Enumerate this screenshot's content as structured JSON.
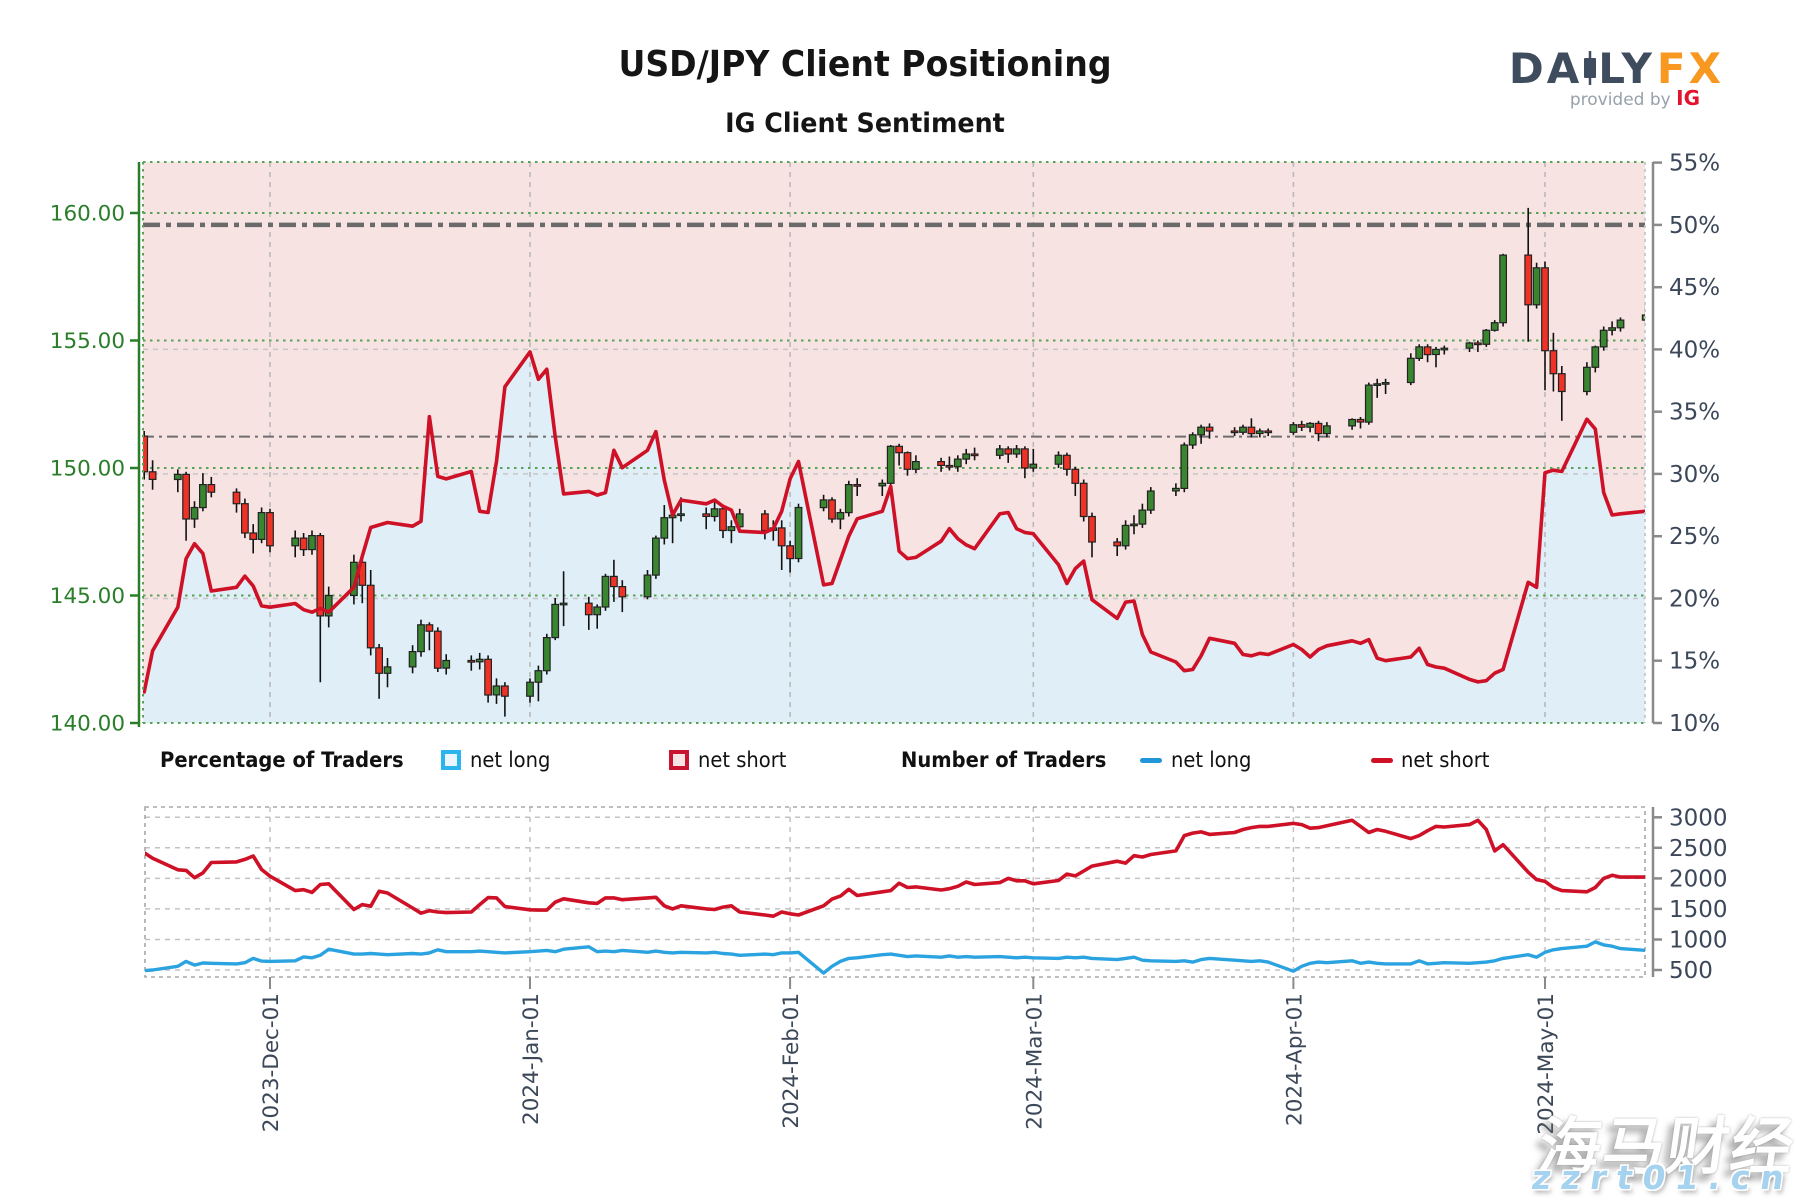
{
  "header": {
    "title": "USD/JPY Client Positioning",
    "subtitle": "IG Client Sentiment",
    "logo": {
      "part1": "DA",
      "part2": "LY",
      "part3": "FX",
      "provided": "provided by",
      "ig": "IG"
    }
  },
  "legend": {
    "pct_title": "Percentage of Traders",
    "pct_long": "net long",
    "pct_short": "net short",
    "num_title": "Number of Traders",
    "num_long": "net long",
    "num_short": "net short"
  },
  "watermark": {
    "line1": "海马财经",
    "line2": "zzrt01.cn"
  },
  "colors": {
    "axis_green": "#2a7e2a",
    "grid_green": "#57a257",
    "grid_gray": "#bbbbbb",
    "ref_line": "#686868",
    "pink_bg": "#f8e3e3",
    "blue_bg": "#e0eef8",
    "sentiment_red": "#ce1126",
    "candle_up": "#3a8530",
    "candle_down": "#ee3326",
    "count_blue": "#2ba3e0",
    "label_slate": "#3c4859",
    "logo_slate": "#3f4c5d",
    "logo_orange": "#f89820",
    "logo_ig_red": "#e4132d"
  },
  "chart_data": {
    "type": "candlestick+line",
    "title": "USD/JPY Client Positioning",
    "subtitle": "IG Client Sentiment",
    "x_months": [
      {
        "label": "2023-Dec-01",
        "d": 15
      },
      {
        "label": "2024-Jan-01",
        "d": 46
      },
      {
        "label": "2024-Feb-01",
        "d": 77
      },
      {
        "label": "2024-Mar-01",
        "d": 106
      },
      {
        "label": "2024-Apr-01",
        "d": 137
      },
      {
        "label": "2024-May-01",
        "d": 167
      }
    ],
    "price_axis": {
      "tick_labels": [
        "160.00",
        "155.00",
        "150.00",
        "145.00",
        "140.00"
      ],
      "tick_values": [
        160,
        155,
        150,
        145,
        140
      ],
      "range": [
        140,
        162.0
      ]
    },
    "pct_axis": {
      "tick_labels": [
        "55%",
        "50%",
        "45%",
        "40%",
        "35%",
        "30%",
        "25%",
        "20%",
        "15%",
        "10%"
      ],
      "tick_values": [
        55,
        50,
        45,
        40,
        35,
        30,
        25,
        20,
        15,
        10
      ],
      "range": [
        10,
        55.05
      ],
      "ref_heavy": 50,
      "ref_mid": 33
    },
    "count_axis": {
      "tick_labels": [
        "3000",
        "2500",
        "2000",
        "1500",
        "1000",
        "500"
      ],
      "tick_values": [
        3000,
        2500,
        2000,
        1500,
        1000,
        500
      ]
    },
    "days": [
      0,
      1,
      4,
      5,
      6,
      7,
      8,
      11,
      12,
      13,
      14,
      15,
      18,
      19,
      20,
      21,
      22,
      25,
      26,
      27,
      28,
      29,
      32,
      33,
      34,
      35,
      36,
      39,
      40,
      41,
      42,
      43,
      46,
      47,
      48,
      49,
      50,
      53,
      54,
      55,
      56,
      57,
      60,
      61,
      62,
      63,
      64,
      67,
      68,
      69,
      70,
      71,
      74,
      75,
      76,
      77,
      78,
      81,
      82,
      83,
      84,
      85,
      88,
      89,
      90,
      91,
      92,
      95,
      96,
      97,
      98,
      99,
      102,
      103,
      104,
      105,
      106,
      109,
      110,
      111,
      112,
      113,
      116,
      117,
      118,
      119,
      120,
      123,
      124,
      125,
      126,
      127,
      130,
      131,
      132,
      133,
      134,
      137,
      138,
      139,
      140,
      141,
      144,
      145,
      146,
      147,
      148,
      151,
      152,
      153,
      154,
      155,
      158,
      159,
      160,
      161,
      162,
      165,
      166,
      167,
      168,
      169,
      172,
      173,
      174,
      175,
      176,
      179
    ],
    "candles_ohlc": [
      [
        151.25,
        151.45,
        149.55,
        149.85
      ],
      [
        149.85,
        150.3,
        149.15,
        149.55
      ],
      [
        149.55,
        149.95,
        149.05,
        149.75
      ],
      [
        149.75,
        149.85,
        147.15,
        148.0
      ],
      [
        148.0,
        148.7,
        147.65,
        148.45
      ],
      [
        148.45,
        149.8,
        148.3,
        149.35
      ],
      [
        149.35,
        149.65,
        148.85,
        149.05
      ],
      [
        149.05,
        149.2,
        148.25,
        148.6
      ],
      [
        148.6,
        148.8,
        147.25,
        147.45
      ],
      [
        147.45,
        147.8,
        146.65,
        147.2
      ],
      [
        147.2,
        148.45,
        147.05,
        148.25
      ],
      [
        148.25,
        148.4,
        146.7,
        146.95
      ],
      [
        146.95,
        147.55,
        146.5,
        147.25
      ],
      [
        147.25,
        147.45,
        146.55,
        146.8
      ],
      [
        146.8,
        147.55,
        146.6,
        147.35
      ],
      [
        147.35,
        147.45,
        141.6,
        144.2
      ],
      [
        144.2,
        145.35,
        143.75,
        145.0
      ],
      [
        145.0,
        146.6,
        144.65,
        146.3
      ],
      [
        146.3,
        146.5,
        144.7,
        145.4
      ],
      [
        145.4,
        146.0,
        142.65,
        142.95
      ],
      [
        142.95,
        143.1,
        140.95,
        141.95
      ],
      [
        141.95,
        142.55,
        141.4,
        142.2
      ],
      [
        142.2,
        143.05,
        141.95,
        142.8
      ],
      [
        142.8,
        144.05,
        142.6,
        143.85
      ],
      [
        143.85,
        143.95,
        142.85,
        143.6
      ],
      [
        143.6,
        143.75,
        142.0,
        142.15
      ],
      [
        142.15,
        142.7,
        141.9,
        142.45
      ],
      [
        142.45,
        142.65,
        142.05,
        142.4
      ],
      [
        142.4,
        142.75,
        142.1,
        142.5
      ],
      [
        142.5,
        142.65,
        140.8,
        141.1
      ],
      [
        141.1,
        141.75,
        140.75,
        141.45
      ],
      [
        141.45,
        141.6,
        140.25,
        141.05
      ],
      [
        141.05,
        141.75,
        140.8,
        141.6
      ],
      [
        141.6,
        142.25,
        140.85,
        142.05
      ],
      [
        142.05,
        143.5,
        141.9,
        143.35
      ],
      [
        143.35,
        144.9,
        143.25,
        144.65
      ],
      [
        144.65,
        145.95,
        143.8,
        144.7
      ],
      [
        144.7,
        144.95,
        143.65,
        144.25
      ],
      [
        144.25,
        144.65,
        143.7,
        144.55
      ],
      [
        144.55,
        145.85,
        144.4,
        145.75
      ],
      [
        145.75,
        146.4,
        144.75,
        145.35
      ],
      [
        145.35,
        145.6,
        144.35,
        144.95
      ],
      [
        144.95,
        146.0,
        144.85,
        145.8
      ],
      [
        145.8,
        147.35,
        145.65,
        147.25
      ],
      [
        147.25,
        148.55,
        147.0,
        148.05
      ],
      [
        148.05,
        148.35,
        147.05,
        148.15
      ],
      [
        148.15,
        148.85,
        147.9,
        148.2
      ],
      [
        148.2,
        148.45,
        147.6,
        148.1
      ],
      [
        148.1,
        148.75,
        147.9,
        148.4
      ],
      [
        148.4,
        148.5,
        147.25,
        147.55
      ],
      [
        147.55,
        147.95,
        147.05,
        147.7
      ],
      [
        147.7,
        148.4,
        147.45,
        148.2
      ],
      [
        148.2,
        148.35,
        147.2,
        147.55
      ],
      [
        147.55,
        147.95,
        147.15,
        147.65
      ],
      [
        147.65,
        147.95,
        146.0,
        146.95
      ],
      [
        146.95,
        147.15,
        145.9,
        146.45
      ],
      [
        146.45,
        148.6,
        146.3,
        148.45
      ],
      [
        148.45,
        148.95,
        148.3,
        148.75
      ],
      [
        148.75,
        148.85,
        147.85,
        148.0
      ],
      [
        148.0,
        148.4,
        147.6,
        148.25
      ],
      [
        148.25,
        149.5,
        148.1,
        149.35
      ],
      [
        149.35,
        149.6,
        148.9,
        149.3
      ],
      [
        149.3,
        149.55,
        148.9,
        149.4
      ],
      [
        149.4,
        150.9,
        149.3,
        150.85
      ],
      [
        150.85,
        150.95,
        150.1,
        150.6
      ],
      [
        150.6,
        150.65,
        149.7,
        149.95
      ],
      [
        149.95,
        150.5,
        149.8,
        150.25
      ],
      [
        150.25,
        150.4,
        149.85,
        150.1
      ],
      [
        150.1,
        150.45,
        149.9,
        150.05
      ],
      [
        150.05,
        150.5,
        149.85,
        150.35
      ],
      [
        150.35,
        150.75,
        150.15,
        150.55
      ],
      [
        150.55,
        150.8,
        150.3,
        150.5
      ],
      [
        150.5,
        150.9,
        150.35,
        150.75
      ],
      [
        150.75,
        150.85,
        150.2,
        150.55
      ],
      [
        150.55,
        150.9,
        150.4,
        150.75
      ],
      [
        150.75,
        150.85,
        149.6,
        150.0
      ],
      [
        150.0,
        150.75,
        149.85,
        150.15
      ],
      [
        150.15,
        150.65,
        150.0,
        150.5
      ],
      [
        150.5,
        150.6,
        149.7,
        149.95
      ],
      [
        149.95,
        150.05,
        148.9,
        149.4
      ],
      [
        149.4,
        149.55,
        147.9,
        148.1
      ],
      [
        148.1,
        148.25,
        146.5,
        147.1
      ],
      [
        147.1,
        147.25,
        146.55,
        146.95
      ],
      [
        146.95,
        147.95,
        146.8,
        147.75
      ],
      [
        147.75,
        148.15,
        147.4,
        147.8
      ],
      [
        147.8,
        148.6,
        147.65,
        148.35
      ],
      [
        148.35,
        149.25,
        148.2,
        149.1
      ],
      [
        149.1,
        149.4,
        148.9,
        149.2
      ],
      [
        149.2,
        151.0,
        149.05,
        150.9
      ],
      [
        150.9,
        151.4,
        150.75,
        151.3
      ],
      [
        151.3,
        151.7,
        150.95,
        151.6
      ],
      [
        151.6,
        151.75,
        151.15,
        151.45
      ],
      [
        151.45,
        151.6,
        151.25,
        151.4
      ],
      [
        151.4,
        151.7,
        151.3,
        151.6
      ],
      [
        151.6,
        151.95,
        151.2,
        151.35
      ],
      [
        151.35,
        151.55,
        151.2,
        151.45
      ],
      [
        151.45,
        151.55,
        151.25,
        151.4
      ],
      [
        151.4,
        151.8,
        151.3,
        151.7
      ],
      [
        151.7,
        151.85,
        151.45,
        151.6
      ],
      [
        151.6,
        151.8,
        151.4,
        151.75
      ],
      [
        151.75,
        151.85,
        151.05,
        151.35
      ],
      [
        151.35,
        151.8,
        151.2,
        151.65
      ],
      [
        151.65,
        151.95,
        151.5,
        151.9
      ],
      [
        151.9,
        152.0,
        151.55,
        151.8
      ],
      [
        151.8,
        153.35,
        151.7,
        153.25
      ],
      [
        153.25,
        153.5,
        152.75,
        153.3
      ],
      [
        153.3,
        153.5,
        152.9,
        153.35
      ],
      [
        153.35,
        154.5,
        153.25,
        154.3
      ],
      [
        154.3,
        154.85,
        154.2,
        154.75
      ],
      [
        154.75,
        154.85,
        154.15,
        154.45
      ],
      [
        154.45,
        154.75,
        153.95,
        154.65
      ],
      [
        154.65,
        154.8,
        154.45,
        154.7
      ],
      [
        154.7,
        154.95,
        154.55,
        154.9
      ],
      [
        154.9,
        155.0,
        154.55,
        154.85
      ],
      [
        154.85,
        155.45,
        154.75,
        155.4
      ],
      [
        155.4,
        155.8,
        155.35,
        155.7
      ],
      [
        155.7,
        158.4,
        155.55,
        158.35
      ],
      [
        158.35,
        160.2,
        154.95,
        156.4
      ],
      [
        156.4,
        158.05,
        156.25,
        157.85
      ],
      [
        157.85,
        158.1,
        153.05,
        154.6
      ],
      [
        154.6,
        155.3,
        153.0,
        153.7
      ],
      [
        153.7,
        154.0,
        151.85,
        153.0
      ],
      [
        153.0,
        154.15,
        152.85,
        153.95
      ],
      [
        153.95,
        154.8,
        153.75,
        154.75
      ],
      [
        154.75,
        155.55,
        154.6,
        155.4
      ],
      [
        155.4,
        155.75,
        155.2,
        155.5
      ],
      [
        155.5,
        155.9,
        155.35,
        155.8
      ],
      [
        155.8,
        156.4,
        155.65,
        156.0
      ]
    ],
    "pct_net_short": [
      12.5,
      15.8,
      19.3,
      23.2,
      24.4,
      23.6,
      20.6,
      20.9,
      21.8,
      21.0,
      19.4,
      19.3,
      19.6,
      19.1,
      18.9,
      19.2,
      18.9,
      20.9,
      23.4,
      25.7,
      25.9,
      26.1,
      25.8,
      26.2,
      34.6,
      29.8,
      29.6,
      30.2,
      27.0,
      26.9,
      31.0,
      37.0,
      39.8,
      37.6,
      38.4,
      33.0,
      28.4,
      28.6,
      28.3,
      28.5,
      31.9,
      30.5,
      31.9,
      33.4,
      29.5,
      26.7,
      27.9,
      27.6,
      27.9,
      27.4,
      27.1,
      25.4,
      25.3,
      25.6,
      27.0,
      29.6,
      31.0,
      21.1,
      21.2,
      23.1,
      25.0,
      26.4,
      27.0,
      29.0,
      23.8,
      23.2,
      23.3,
      24.6,
      25.6,
      24.8,
      24.3,
      24.0,
      26.8,
      26.9,
      25.6,
      25.3,
      25.2,
      22.7,
      21.2,
      22.4,
      23.0,
      19.9,
      18.4,
      19.7,
      19.8,
      17.1,
      15.7,
      14.9,
      14.2,
      14.3,
      15.4,
      16.8,
      16.4,
      15.5,
      15.4,
      15.6,
      15.5,
      16.3,
      15.9,
      15.3,
      15.9,
      16.2,
      16.6,
      16.4,
      16.7,
      15.2,
      15.0,
      15.3,
      16.0,
      14.7,
      14.5,
      14.4,
      13.5,
      13.3,
      13.4,
      14.0,
      14.3,
      21.3,
      20.9,
      30.1,
      30.3,
      30.2,
      34.4,
      33.6,
      28.5,
      26.7,
      26.8,
      27.0
    ],
    "num_net_short": [
      2420,
      2330,
      2140,
      2130,
      2010,
      2090,
      2260,
      2270,
      2310,
      2365,
      2145,
      2035,
      1800,
      1815,
      1770,
      1900,
      1910,
      1490,
      1570,
      1545,
      1790,
      1760,
      1515,
      1430,
      1470,
      1450,
      1440,
      1450,
      1570,
      1685,
      1680,
      1540,
      1485,
      1480,
      1480,
      1610,
      1665,
      1600,
      1590,
      1680,
      1680,
      1650,
      1680,
      1690,
      1550,
      1500,
      1550,
      1500,
      1490,
      1530,
      1550,
      1450,
      1400,
      1380,
      1450,
      1420,
      1400,
      1550,
      1660,
      1710,
      1820,
      1720,
      1780,
      1800,
      1920,
      1850,
      1860,
      1810,
      1830,
      1870,
      1940,
      1900,
      1930,
      2000,
      1960,
      1960,
      1910,
      1965,
      2070,
      2040,
      2120,
      2200,
      2280,
      2250,
      2370,
      2350,
      2390,
      2450,
      2700,
      2740,
      2760,
      2720,
      2750,
      2800,
      2830,
      2850,
      2850,
      2900,
      2880,
      2820,
      2830,
      2860,
      2950,
      2850,
      2750,
      2800,
      2770,
      2650,
      2700,
      2780,
      2850,
      2840,
      2880,
      2950,
      2800,
      2450,
      2550,
      2100,
      1980,
      1950,
      1850,
      1800,
      1780,
      1850,
      2000,
      2050,
      2020,
      2020
    ],
    "num_net_long": [
      490,
      500,
      560,
      640,
      580,
      615,
      610,
      600,
      620,
      690,
      645,
      640,
      650,
      715,
      700,
      740,
      840,
      760,
      760,
      770,
      760,
      750,
      770,
      760,
      780,
      830,
      800,
      800,
      810,
      800,
      790,
      780,
      800,
      810,
      820,
      800,
      840,
      880,
      800,
      810,
      800,
      820,
      790,
      810,
      790,
      780,
      790,
      780,
      790,
      770,
      760,
      740,
      760,
      750,
      780,
      780,
      790,
      450,
      560,
      640,
      690,
      700,
      750,
      760,
      740,
      720,
      730,
      710,
      730,
      710,
      720,
      710,
      720,
      710,
      700,
      710,
      700,
      690,
      710,
      700,
      710,
      690,
      670,
      690,
      710,
      660,
      650,
      640,
      650,
      630,
      670,
      690,
      660,
      650,
      640,
      650,
      630,
      480,
      560,
      610,
      630,
      620,
      650,
      610,
      630,
      610,
      600,
      600,
      650,
      600,
      610,
      620,
      610,
      620,
      630,
      650,
      690,
      750,
      710,
      790,
      830,
      850,
      890,
      960,
      910,
      890,
      850,
      820
    ]
  }
}
